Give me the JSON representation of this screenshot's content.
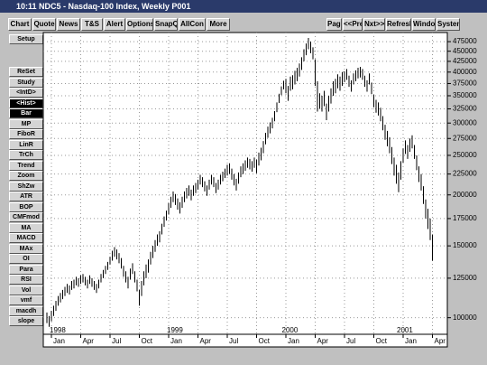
{
  "window": {
    "title": "10:11  NDC5 - Nasdaq-100 Index, Weekly  P001"
  },
  "toolbar": {
    "left": [
      "Chart",
      "Quote",
      "News",
      "T&S",
      "Alert",
      "Options",
      "SnapQ",
      "AllCon",
      "More"
    ],
    "right": [
      "Page",
      "<<Pre",
      "Nxt>>",
      "Refresh",
      "Window",
      "System"
    ]
  },
  "sidebar": [
    "Setup",
    "ReSet",
    "Study",
    "<IntD>",
    "<Hist>",
    "Bar",
    "MP",
    "FiboR",
    "LinR",
    "TrCh",
    "Trend",
    "Zoom",
    "ShZw",
    "ATR",
    "BOP",
    "CMFmod",
    "MA",
    "MACD",
    "MAx",
    "OI",
    "Para",
    "RSI",
    "Vol",
    "vmf",
    "macdh",
    "slope"
  ],
  "chart_data": {
    "type": "ohlc",
    "log_scale": true,
    "grid": true,
    "color": "#000000",
    "ylim": [
      92000,
      490000
    ],
    "yticks": [
      100000,
      125000,
      150000,
      175000,
      200000,
      225000,
      250000,
      275000,
      300000,
      325000,
      350000,
      375000,
      400000,
      425000,
      450000,
      475000
    ],
    "categories": [
      null,
      null,
      "Jan",
      null,
      null,
      null,
      null,
      null,
      null,
      null,
      null,
      null,
      null,
      null,
      null,
      "Apr",
      null,
      null,
      null,
      null,
      null,
      null,
      null,
      null,
      null,
      null,
      null,
      null,
      "Jul",
      null,
      null,
      null,
      null,
      null,
      null,
      null,
      null,
      null,
      null,
      null,
      null,
      "Oct",
      null,
      null,
      null,
      null,
      null,
      null,
      null,
      null,
      null,
      null,
      null,
      null,
      "Jan",
      null,
      null,
      null,
      null,
      null,
      null,
      null,
      null,
      null,
      null,
      null,
      null,
      "Apr",
      null,
      null,
      null,
      null,
      null,
      null,
      null,
      null,
      null,
      null,
      null,
      null,
      "Jul",
      null,
      null,
      null,
      null,
      null,
      null,
      null,
      null,
      null,
      null,
      null,
      null,
      "Oct",
      null,
      null,
      null,
      null,
      null,
      null,
      null,
      null,
      null,
      null,
      null,
      null,
      "Jan",
      null,
      null,
      null,
      null,
      null,
      null,
      null,
      null,
      null,
      null,
      null,
      null,
      "Apr",
      null,
      null,
      null,
      null,
      null,
      null,
      null,
      null,
      null,
      null,
      null,
      null,
      "Jul",
      null,
      null,
      null,
      null,
      null,
      null,
      null,
      null,
      null,
      null,
      null,
      null,
      "Oct",
      null,
      null,
      null,
      null,
      null,
      null,
      null,
      null,
      null,
      null,
      null,
      null,
      "Jan",
      null,
      null,
      null,
      null,
      null,
      null,
      null,
      null,
      null,
      null,
      null,
      null,
      "Apr"
    ],
    "years": [
      null,
      null,
      "1998",
      null,
      null,
      null,
      null,
      null,
      null,
      null,
      null,
      null,
      null,
      null,
      null,
      null,
      null,
      null,
      null,
      null,
      null,
      null,
      null,
      null,
      null,
      null,
      null,
      null,
      null,
      null,
      null,
      null,
      null,
      null,
      null,
      null,
      null,
      null,
      null,
      null,
      null,
      null,
      null,
      null,
      null,
      null,
      null,
      null,
      null,
      null,
      null,
      null,
      null,
      null,
      "1999",
      null,
      null,
      null,
      null,
      null,
      null,
      null,
      null,
      null,
      null,
      null,
      null,
      null,
      null,
      null,
      null,
      null,
      null,
      null,
      null,
      null,
      null,
      null,
      null,
      null,
      null,
      null,
      null,
      null,
      null,
      null,
      null,
      null,
      null,
      null,
      null,
      null,
      null,
      null,
      null,
      null,
      null,
      null,
      null,
      null,
      null,
      null,
      null,
      null,
      null,
      "2000",
      null,
      null,
      null,
      null,
      null,
      null,
      null,
      null,
      null,
      null,
      null,
      null,
      null,
      null,
      null,
      null,
      null,
      null,
      null,
      null,
      null,
      null,
      null,
      null,
      null,
      null,
      null,
      null,
      null,
      null,
      null,
      null,
      null,
      null,
      null,
      null,
      null,
      null,
      null,
      null,
      null,
      null,
      null,
      null,
      null,
      null,
      null,
      null,
      null,
      null,
      "2001",
      null,
      null,
      null,
      null,
      null,
      null,
      null,
      null,
      null,
      null,
      null,
      null,
      null
    ],
    "high": [
      103000,
      101000,
      104000,
      107000,
      110000,
      113000,
      115000,
      117000,
      119000,
      121000,
      120000,
      123000,
      124000,
      126000,
      125000,
      127000,
      128000,
      126000,
      124000,
      127000,
      125000,
      123000,
      121000,
      124000,
      128000,
      131000,
      134000,
      137000,
      141000,
      146000,
      149000,
      147000,
      144000,
      140000,
      134000,
      130000,
      126000,
      132000,
      136000,
      130000,
      124000,
      117000,
      123000,
      130000,
      135000,
      139000,
      145000,
      150000,
      155000,
      160000,
      163000,
      170000,
      177000,
      183000,
      191000,
      198000,
      204000,
      201000,
      196000,
      192000,
      198000,
      204000,
      208000,
      211000,
      206000,
      211000,
      214000,
      218000,
      224000,
      221000,
      216000,
      211000,
      218000,
      224000,
      221000,
      214000,
      218000,
      224000,
      228000,
      232000,
      237000,
      239000,
      232000,
      225000,
      219000,
      227000,
      235000,
      239000,
      243000,
      247000,
      245000,
      242000,
      247000,
      244000,
      254000,
      261000,
      271000,
      284000,
      294000,
      301000,
      309000,
      321000,
      337000,
      354000,
      369000,
      381000,
      385000,
      370000,
      390000,
      393000,
      403000,
      410000,
      420000,
      435000,
      455000,
      470000,
      485000,
      475000,
      460000,
      430000,
      380000,
      355000,
      350000,
      360000,
      335000,
      350000,
      365000,
      380000,
      385000,
      395000,
      390000,
      400000,
      402000,
      407000,
      392000,
      382000,
      397000,
      404000,
      410000,
      412000,
      407000,
      392000,
      382000,
      397000,
      377000,
      352000,
      342000,
      337000,
      327000,
      312000,
      297000,
      287000,
      277000,
      262000,
      247000,
      237000,
      227000,
      242000,
      260000,
      272000,
      265000,
      275000,
      280000,
      265000,
      250000,
      235000,
      225000,
      210000,
      195000,
      185000,
      175000,
      160000
    ],
    "low": [
      97000,
      95000,
      98000,
      101000,
      104000,
      107000,
      109000,
      111000,
      113000,
      115000,
      114000,
      117000,
      118000,
      120000,
      119000,
      121000,
      122000,
      120000,
      118000,
      121000,
      119000,
      117000,
      115000,
      118000,
      122000,
      125000,
      128000,
      131000,
      135000,
      138000,
      141000,
      139000,
      136000,
      132000,
      126000,
      122000,
      118000,
      124000,
      128000,
      122000,
      116000,
      107000,
      113000,
      120000,
      125000,
      129000,
      135000,
      140000,
      145000,
      150000,
      153000,
      160000,
      167000,
      173000,
      179000,
      186000,
      192000,
      189000,
      184000,
      180000,
      186000,
      192000,
      196000,
      199000,
      194000,
      199000,
      202000,
      206000,
      212000,
      209000,
      204000,
      199000,
      206000,
      212000,
      209000,
      202000,
      206000,
      212000,
      216000,
      220000,
      223000,
      225000,
      218000,
      211000,
      205000,
      213000,
      221000,
      225000,
      229000,
      233000,
      231000,
      228000,
      233000,
      226000,
      236000,
      243000,
      253000,
      266000,
      276000,
      283000,
      291000,
      303000,
      319000,
      336000,
      351000,
      363000,
      355000,
      340000,
      360000,
      363000,
      373000,
      380000,
      390000,
      405000,
      425000,
      440000,
      455000,
      445000,
      430000,
      370000,
      320000,
      325000,
      320000,
      330000,
      305000,
      320000,
      335000,
      350000,
      355000,
      365000,
      360000,
      370000,
      378000,
      383000,
      368000,
      358000,
      373000,
      380000,
      386000,
      388000,
      383000,
      368000,
      358000,
      373000,
      353000,
      328000,
      318000,
      313000,
      303000,
      288000,
      273000,
      263000,
      253000,
      238000,
      223000,
      213000,
      203000,
      218000,
      240000,
      252000,
      245000,
      255000,
      260000,
      245000,
      230000,
      215000,
      205000,
      190000,
      175000,
      165000,
      155000,
      138000
    ]
  }
}
